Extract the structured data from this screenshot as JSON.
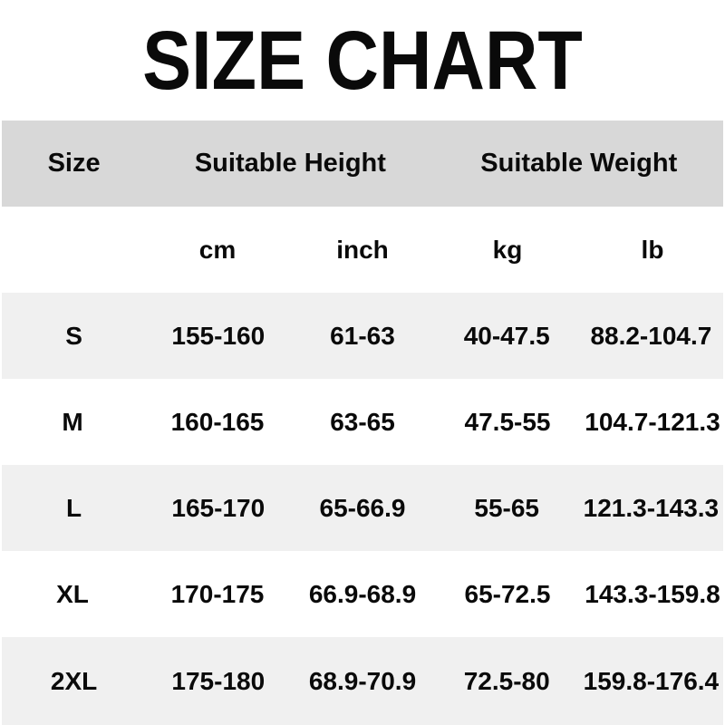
{
  "title": "SIZE CHART",
  "chart_data": {
    "type": "table",
    "title": "SIZE CHART",
    "column_groups": [
      "Size",
      "Suitable Height",
      "Suitable Weight"
    ],
    "columns": [
      "Size",
      "cm",
      "inch",
      "kg",
      "lb"
    ],
    "rows": [
      [
        "S",
        "155-160",
        "61-63",
        "40-47.5",
        "88.2-104.7"
      ],
      [
        "M",
        "160-165",
        "63-65",
        "47.5-55",
        "104.7-121.3"
      ],
      [
        "L",
        "165-170",
        "65-66.9",
        "55-65",
        "121.3-143.3"
      ],
      [
        "XL",
        "170-175",
        "66.9-68.9",
        "65-72.5",
        "143.3-159.8"
      ],
      [
        "2XL",
        "175-180",
        "68.9-70.9",
        "72.5-80",
        "159.8-176.4"
      ]
    ]
  },
  "colors": {
    "header_bg": "#d8d8d8",
    "stripe_bg": "#f0f0f0",
    "row_bg": "#ffffff",
    "text": "#0a0a0a"
  }
}
